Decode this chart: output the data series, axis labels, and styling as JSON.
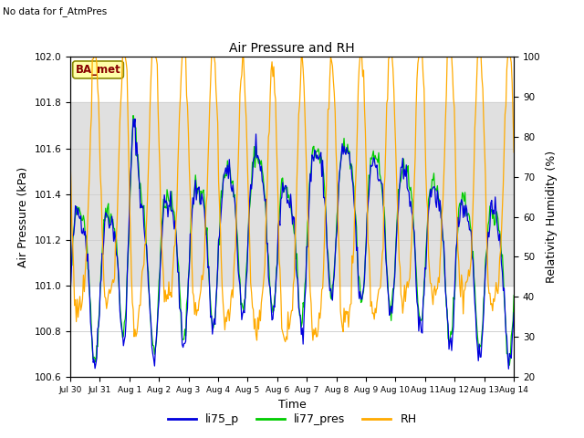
{
  "title": "Air Pressure and RH",
  "top_left_text": "No data for f_AtmPres",
  "xlabel": "Time",
  "ylabel_left": "Air Pressure (kPa)",
  "ylabel_right": "Relativity Humidity (%)",
  "ylim_left": [
    100.6,
    102.0
  ],
  "ylim_right": [
    20,
    100
  ],
  "yticks_left": [
    100.6,
    100.8,
    101.0,
    101.2,
    101.4,
    101.6,
    101.8,
    102.0
  ],
  "yticks_right": [
    20,
    30,
    40,
    50,
    60,
    70,
    80,
    90,
    100
  ],
  "xtick_labels": [
    "Jul 30",
    "Jul 31",
    "Aug 1",
    "Aug 2",
    "Aug 3",
    "Aug 4",
    "Aug 5",
    "Aug 6",
    "Aug 7",
    "Aug 8",
    "Aug 9",
    "Aug 10",
    "Aug 11",
    "Aug 12",
    "Aug 13",
    "Aug 14"
  ],
  "legend_labels": [
    "li75_p",
    "li77_pres",
    "RH"
  ],
  "line_colors": [
    "#0000dd",
    "#00cc00",
    "#ffaa00"
  ],
  "ba_met_facecolor": "#ffffaa",
  "ba_met_edgecolor": "#888800",
  "ba_met_text_color": "#880000",
  "grid_color": "#d0d0d0",
  "shaded_band_color": "#e0e0e0",
  "shaded_band_ylim": [
    101.0,
    101.8
  ],
  "background_color": "#ffffff",
  "n_points": 500
}
